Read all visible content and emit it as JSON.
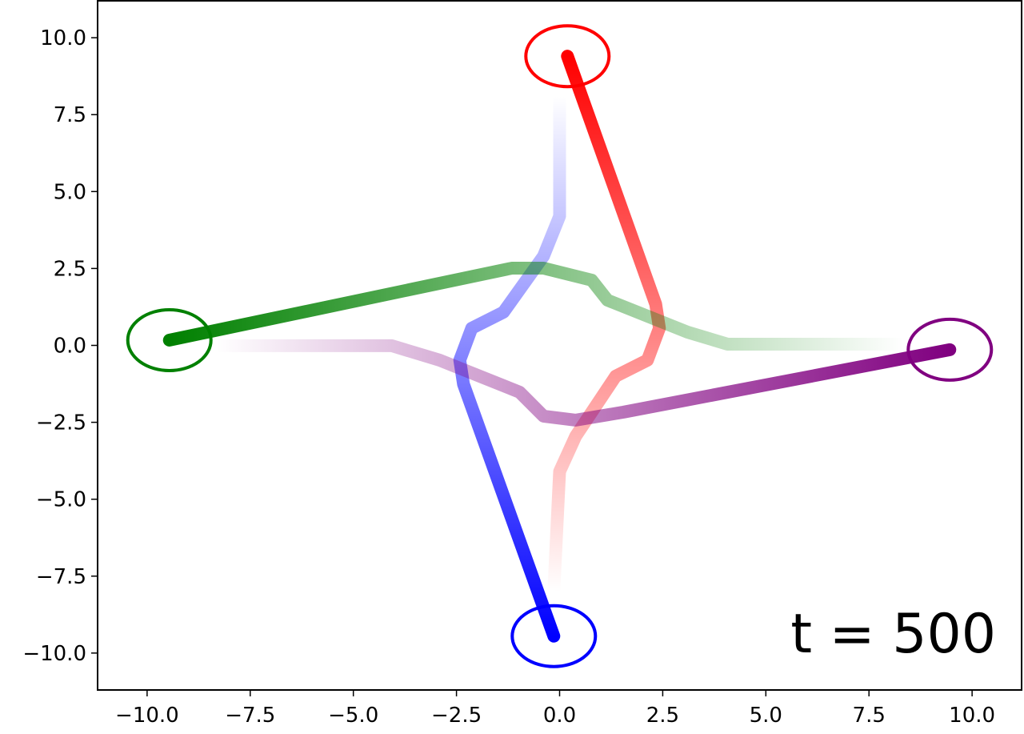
{
  "chart_data": {
    "type": "line",
    "annotation": "t = 500",
    "annotation_color": "#ff0000",
    "xlim": [
      -11.2,
      11.2
    ],
    "ylim": [
      -11.2,
      11.2
    ],
    "xticks": [
      {
        "value": -10,
        "label": "−10.0"
      },
      {
        "value": -7.5,
        "label": "−7.5"
      },
      {
        "value": -5,
        "label": "−5.0"
      },
      {
        "value": -2.5,
        "label": "−2.5"
      },
      {
        "value": 0,
        "label": "0.0"
      },
      {
        "value": 2.5,
        "label": "2.5"
      },
      {
        "value": 5,
        "label": "5.0"
      },
      {
        "value": 7.5,
        "label": "7.5"
      },
      {
        "value": 10,
        "label": "10.0"
      }
    ],
    "yticks": [
      {
        "value": -10,
        "label": "−10.0"
      },
      {
        "value": -7.5,
        "label": "−7.5"
      },
      {
        "value": -5,
        "label": "−5.0"
      },
      {
        "value": -2.5,
        "label": "−2.5"
      },
      {
        "value": 0,
        "label": "0.0"
      },
      {
        "value": 2.5,
        "label": "2.5"
      },
      {
        "value": 5,
        "label": "5.0"
      },
      {
        "value": 7.5,
        "label": "7.5"
      },
      {
        "value": 10,
        "label": "10.0"
      }
    ],
    "series": [
      {
        "color": "#ff0000",
        "x": [
          -0.14,
          0,
          0.39,
          1.36,
          2.13,
          2.42,
          2.33,
          0.19
        ],
        "values": [
          -8.0,
          -4.1,
          -2.95,
          -1.0,
          -0.48,
          0.56,
          1.34,
          9.4
        ]
      },
      {
        "color": "#0000ff",
        "x": [
          0,
          0,
          -0.39,
          -1.36,
          -2.13,
          -2.42,
          -2.33,
          -0.14
        ],
        "values": [
          8.1,
          4.2,
          2.9,
          1.08,
          0.56,
          -0.48,
          -1.26,
          -9.45
        ]
      },
      {
        "color": "#008000",
        "x": [
          8.33,
          4.07,
          3.1,
          1.16,
          0.78,
          -0.39,
          -1.16,
          -9.46
        ],
        "values": [
          0.04,
          0.04,
          0.43,
          1.47,
          2.12,
          2.51,
          2.51,
          0.17
        ]
      },
      {
        "color": "#800080",
        "x": [
          -8.33,
          -4.07,
          -2.91,
          -0.97,
          -0.39,
          0.39,
          1.55,
          9.46
        ],
        "values": [
          -0.01,
          -0.01,
          -0.48,
          -1.52,
          -2.3,
          -2.43,
          -2.17,
          -0.14
        ]
      }
    ]
  }
}
